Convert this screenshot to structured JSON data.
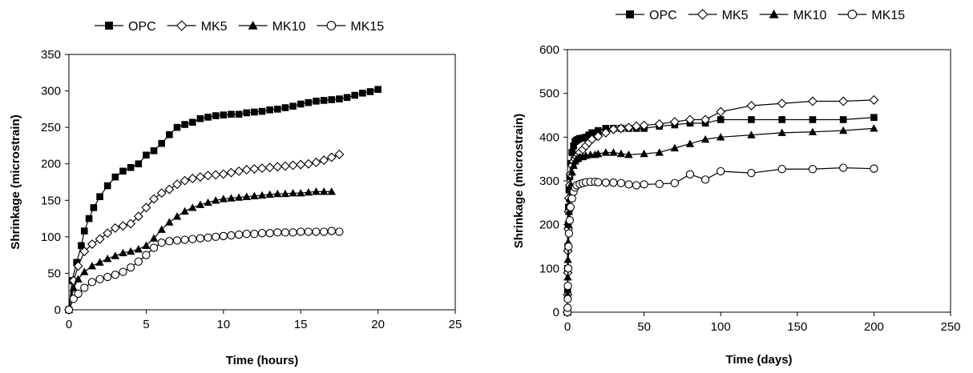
{
  "chart_data": [
    {
      "type": "scatter",
      "xlabel": "Time (hours)",
      "ylabel": "Shrinkage (microstrain)",
      "xlim": [
        0,
        25
      ],
      "ylim": [
        0,
        350
      ],
      "xticks": [
        "0",
        "5",
        "10",
        "15",
        "20",
        "25"
      ],
      "yticks": [
        "0",
        "50",
        "100",
        "150",
        "200",
        "250",
        "300",
        "350"
      ],
      "grid": false,
      "legend": "top",
      "series": [
        {
          "name": "OPC",
          "marker": "filled-square",
          "x": [
            0,
            0.2,
            0.5,
            0.8,
            1.0,
            1.3,
            1.6,
            2.0,
            2.5,
            3.0,
            3.5,
            4.0,
            4.5,
            5.0,
            5.5,
            6.0,
            6.5,
            7.0,
            7.5,
            8.0,
            8.5,
            9.0,
            9.5,
            10.0,
            10.5,
            11.0,
            11.5,
            12.0,
            12.5,
            13.0,
            13.5,
            14.0,
            14.5,
            15.0,
            15.5,
            16.0,
            16.5,
            17.0,
            17.5,
            18.0,
            18.5,
            19.0,
            19.5,
            20.0
          ],
          "y": [
            0,
            40,
            65,
            88,
            108,
            125,
            140,
            155,
            170,
            182,
            190,
            195,
            200,
            212,
            218,
            228,
            240,
            250,
            254,
            257,
            262,
            264,
            266,
            267,
            268,
            268,
            270,
            271,
            272,
            274,
            275,
            277,
            279,
            282,
            284,
            286,
            287,
            288,
            289,
            291,
            294,
            297,
            299,
            302
          ]
        },
        {
          "name": "MK5",
          "marker": "open-diamond",
          "x": [
            0,
            0.3,
            0.6,
            1.0,
            1.5,
            2.0,
            2.5,
            3.0,
            3.5,
            4.0,
            4.5,
            5.0,
            5.5,
            6.0,
            6.5,
            7.0,
            7.5,
            8.0,
            8.5,
            9.0,
            9.5,
            10.0,
            10.5,
            11.0,
            11.5,
            12.0,
            12.5,
            13.0,
            13.5,
            14.0,
            14.5,
            15.0,
            15.5,
            16.0,
            16.5,
            17.0,
            17.5
          ],
          "y": [
            0,
            40,
            60,
            80,
            90,
            97,
            105,
            112,
            115,
            118,
            128,
            140,
            152,
            160,
            165,
            172,
            177,
            180,
            182,
            184,
            185,
            186,
            188,
            190,
            192,
            193,
            194,
            195,
            196,
            197,
            198,
            199,
            200,
            202,
            205,
            209,
            213
          ]
        },
        {
          "name": "MK10",
          "marker": "filled-triangle",
          "x": [
            0,
            0.3,
            0.6,
            1.0,
            1.5,
            2.0,
            2.5,
            3.0,
            3.5,
            4.0,
            4.5,
            5.0,
            5.5,
            6.0,
            6.5,
            7.0,
            7.5,
            8.0,
            8.5,
            9.0,
            9.5,
            10.0,
            10.5,
            11.0,
            11.5,
            12.0,
            12.5,
            13.0,
            13.5,
            14.0,
            14.5,
            15.0,
            15.5,
            16.0,
            16.5,
            17.0
          ],
          "y": [
            0,
            30,
            42,
            52,
            60,
            65,
            70,
            74,
            78,
            80,
            83,
            88,
            98,
            110,
            120,
            128,
            135,
            140,
            144,
            147,
            150,
            152,
            153,
            154,
            155,
            156,
            157,
            158,
            159,
            159,
            160,
            160,
            161,
            162,
            162,
            162
          ]
        },
        {
          "name": "MK15",
          "marker": "open-circle",
          "x": [
            0,
            0.3,
            0.6,
            1.0,
            1.5,
            2.0,
            2.5,
            3.0,
            3.5,
            4.0,
            4.5,
            5.0,
            5.5,
            6.0,
            6.5,
            7.0,
            7.5,
            8.0,
            8.5,
            9.0,
            9.5,
            10.0,
            10.5,
            11.0,
            11.5,
            12.0,
            12.5,
            13.0,
            13.5,
            14.0,
            14.5,
            15.0,
            15.5,
            16.0,
            16.5,
            17.0,
            17.5
          ],
          "y": [
            0,
            15,
            22,
            30,
            38,
            42,
            45,
            48,
            52,
            58,
            66,
            75,
            85,
            92,
            94,
            95,
            96,
            97,
            98,
            99,
            100,
            101,
            102,
            103,
            104,
            104,
            105,
            105,
            106,
            106,
            106,
            107,
            107,
            107,
            107,
            108,
            107
          ]
        }
      ]
    },
    {
      "type": "scatter",
      "xlabel": "Time (days)",
      "ylabel": "Shrinkage (microstrain)",
      "xlim": [
        0,
        250
      ],
      "ylim": [
        0,
        600
      ],
      "xticks": [
        "0",
        "50",
        "100",
        "150",
        "200",
        "250"
      ],
      "yticks": [
        "0",
        "100",
        "200",
        "300",
        "400",
        "500",
        "600"
      ],
      "grid": false,
      "legend": "top",
      "series": [
        {
          "name": "OPC",
          "marker": "filled-square",
          "x": [
            0,
            0.1,
            0.2,
            0.3,
            0.5,
            0.7,
            1,
            1.5,
            2,
            3,
            4,
            5,
            6,
            7,
            8,
            10,
            12,
            14,
            16,
            20,
            25,
            30,
            35,
            40,
            45,
            50,
            60,
            70,
            80,
            90,
            100,
            120,
            140,
            160,
            180,
            200
          ],
          "y": [
            0,
            50,
            100,
            150,
            200,
            240,
            280,
            310,
            340,
            365,
            380,
            390,
            393,
            395,
            397,
            398,
            400,
            405,
            410,
            415,
            420,
            420,
            420,
            420,
            420,
            420,
            425,
            428,
            432,
            432,
            440,
            440,
            440,
            440,
            440,
            445
          ]
        },
        {
          "name": "MK5",
          "marker": "open-diamond",
          "x": [
            0,
            0.1,
            0.2,
            0.3,
            0.5,
            0.7,
            1,
            1.5,
            2,
            3,
            4,
            5,
            6,
            7,
            8,
            10,
            12,
            14,
            16,
            20,
            25,
            30,
            35,
            40,
            45,
            50,
            60,
            70,
            80,
            90,
            100,
            120,
            140,
            160,
            180,
            200
          ],
          "y": [
            0,
            40,
            90,
            140,
            190,
            230,
            260,
            290,
            315,
            335,
            345,
            350,
            355,
            360,
            365,
            372,
            380,
            388,
            395,
            402,
            410,
            418,
            420,
            422,
            425,
            427,
            430,
            435,
            440,
            440,
            458,
            472,
            477,
            482,
            482,
            485
          ]
        },
        {
          "name": "MK10",
          "marker": "filled-triangle",
          "x": [
            0,
            0.1,
            0.2,
            0.3,
            0.5,
            0.7,
            1,
            1.5,
            2,
            3,
            4,
            5,
            6,
            7,
            8,
            10,
            12,
            15,
            18,
            20,
            25,
            30,
            35,
            40,
            50,
            60,
            70,
            80,
            90,
            100,
            120,
            140,
            160,
            180,
            200
          ],
          "y": [
            0,
            40,
            80,
            120,
            160,
            200,
            230,
            260,
            290,
            320,
            335,
            345,
            350,
            352,
            355,
            355,
            358,
            360,
            360,
            362,
            365,
            365,
            362,
            360,
            362,
            365,
            375,
            385,
            395,
            400,
            405,
            410,
            412,
            415,
            420
          ]
        },
        {
          "name": "MK15",
          "marker": "open-circle",
          "x": [
            0,
            0.1,
            0.2,
            0.3,
            0.5,
            0.7,
            1,
            1.5,
            2,
            3,
            4,
            5,
            6,
            8,
            10,
            12,
            15,
            18,
            20,
            25,
            30,
            35,
            40,
            45,
            50,
            60,
            70,
            80,
            90,
            100,
            120,
            140,
            160,
            180,
            200
          ],
          "y": [
            0,
            10,
            30,
            60,
            100,
            150,
            180,
            210,
            240,
            260,
            275,
            285,
            290,
            293,
            295,
            297,
            298,
            298,
            297,
            296,
            296,
            295,
            292,
            290,
            292,
            293,
            295,
            315,
            303,
            322,
            318,
            327,
            327,
            330,
            328
          ]
        }
      ]
    }
  ]
}
